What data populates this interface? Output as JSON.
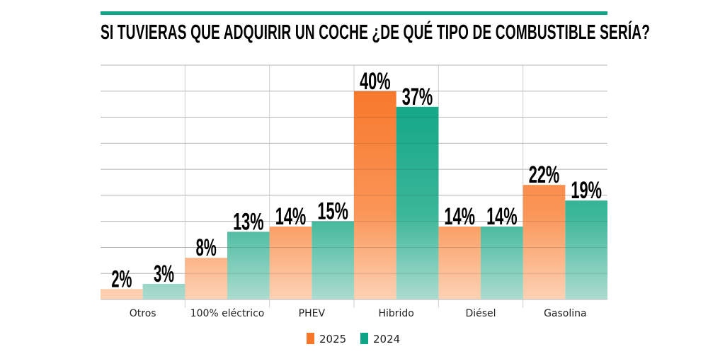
{
  "chart_data": {
    "type": "bar",
    "title": "SI TUVIERAS QUE ADQUIRIR UN COCHE ¿DE QUÉ TIPO DE COMBUSTIBLE SERÍA?",
    "xlabel": "",
    "ylabel": "",
    "categories": [
      "Otros",
      "100% eléctrico",
      "PHEV",
      "Hibrido",
      "Diésel",
      "Gasolina"
    ],
    "series": [
      {
        "name": "2025",
        "values": [
          2,
          8,
          14,
          40,
          14,
          22
        ],
        "labels": [
          "2%",
          "8%",
          "14%",
          "40%",
          "14%",
          "22%"
        ],
        "color": "#f7772a",
        "color_light": "#fdd2b5"
      },
      {
        "name": "2024",
        "values": [
          3,
          13,
          15,
          37,
          14,
          19
        ],
        "labels": [
          "3%",
          "13%",
          "15%",
          "37%",
          "14%",
          "19%"
        ],
        "color": "#0ea586",
        "color_light": "#acdcd0"
      }
    ],
    "ylim": [
      0,
      45
    ],
    "grid": true,
    "legend": "bottom-center",
    "accent": "#12a585"
  }
}
